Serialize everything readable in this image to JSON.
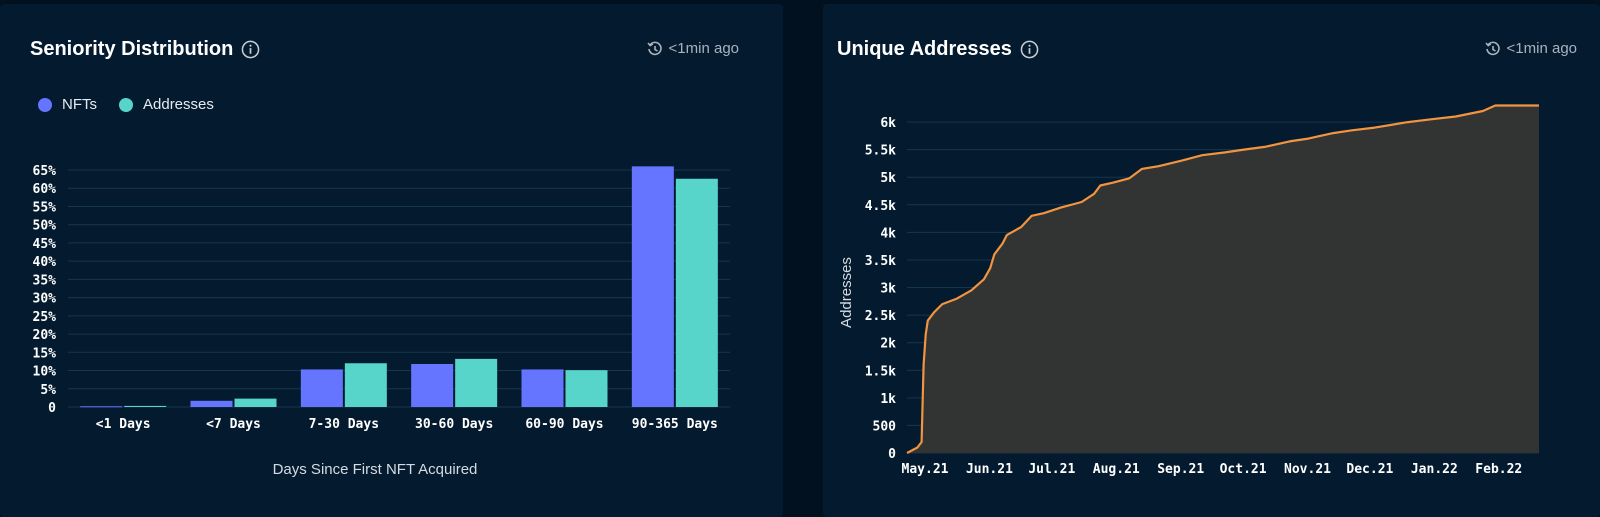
{
  "left_panel": {
    "title": "Seniority Distribution",
    "updated": "<1min ago"
  },
  "right_panel": {
    "title": "Unique Addresses",
    "updated": "<1min ago"
  },
  "chart_data": [
    {
      "type": "bar",
      "title": "Seniority Distribution",
      "xlabel": "Days Since First NFT Acquired",
      "ylabel": "",
      "categories": [
        "<1 Days",
        "<7 Days",
        "7-30 Days",
        "30-60 Days",
        "60-90 Days",
        "90-365 Days"
      ],
      "series": [
        {
          "name": "NFTs",
          "color": "#6675ff",
          "values": [
            0.2,
            1.7,
            10.3,
            11.8,
            10.3,
            66.0
          ]
        },
        {
          "name": "Addresses",
          "color": "#58d5cb",
          "values": [
            0.3,
            2.3,
            12.0,
            13.2,
            10.1,
            62.6
          ]
        }
      ],
      "ylim": [
        0,
        65
      ],
      "yticks": [
        "0",
        "5%",
        "10%",
        "15%",
        "20%",
        "25%",
        "30%",
        "35%",
        "40%",
        "45%",
        "50%",
        "55%",
        "60%",
        "65%"
      ],
      "legend": "top-left",
      "grid": true
    },
    {
      "type": "area",
      "title": "Unique Addresses",
      "xlabel": "",
      "ylabel": "Addresses",
      "line_color": "#f29440",
      "fill_color": "#353534",
      "ylim": [
        0,
        6000
      ],
      "yticks": [
        "0",
        "500",
        "1k",
        "1.5k",
        "2k",
        "2.5k",
        "3k",
        "3.5k",
        "4k",
        "4.5k",
        "5k",
        "5.5k",
        "6k"
      ],
      "xticks": [
        "May.21",
        "Jun.21",
        "Jul.21",
        "Aug.21",
        "Sep.21",
        "Oct.21",
        "Nov.21",
        "Dec.21",
        "Jan.22",
        "Feb.22"
      ],
      "grid": true,
      "points": [
        [
          "2021-05-01",
          0
        ],
        [
          "2021-05-06",
          100
        ],
        [
          "2021-05-08",
          200
        ],
        [
          "2021-05-09",
          1600
        ],
        [
          "2021-05-10",
          2150
        ],
        [
          "2021-05-11",
          2400
        ],
        [
          "2021-05-14",
          2550
        ],
        [
          "2021-05-18",
          2700
        ],
        [
          "2021-05-25",
          2800
        ],
        [
          "2021-06-01",
          2950
        ],
        [
          "2021-06-07",
          3150
        ],
        [
          "2021-06-10",
          3350
        ],
        [
          "2021-06-12",
          3600
        ],
        [
          "2021-06-16",
          3800
        ],
        [
          "2021-06-18",
          3950
        ],
        [
          "2021-06-25",
          4100
        ],
        [
          "2021-06-30",
          4300
        ],
        [
          "2021-07-06",
          4350
        ],
        [
          "2021-07-14",
          4450
        ],
        [
          "2021-07-24",
          4550
        ],
        [
          "2021-07-30",
          4700
        ],
        [
          "2021-08-02",
          4850
        ],
        [
          "2021-08-08",
          4900
        ],
        [
          "2021-08-16",
          4980
        ],
        [
          "2021-08-22",
          5150
        ],
        [
          "2021-08-30",
          5200
        ],
        [
          "2021-09-10",
          5300
        ],
        [
          "2021-09-20",
          5400
        ],
        [
          "2021-10-01",
          5450
        ],
        [
          "2021-10-10",
          5500
        ],
        [
          "2021-10-20",
          5550
        ],
        [
          "2021-11-01",
          5650
        ],
        [
          "2021-11-10",
          5700
        ],
        [
          "2021-11-22",
          5800
        ],
        [
          "2021-12-01",
          5850
        ],
        [
          "2021-12-12",
          5900
        ],
        [
          "2021-12-28",
          6000
        ],
        [
          "2022-01-08",
          6050
        ],
        [
          "2022-01-20",
          6100
        ],
        [
          "2022-02-02",
          6200
        ],
        [
          "2022-02-08",
          6300
        ],
        [
          "2022-02-18",
          6300
        ],
        [
          "2022-03-01",
          6300
        ]
      ]
    }
  ]
}
